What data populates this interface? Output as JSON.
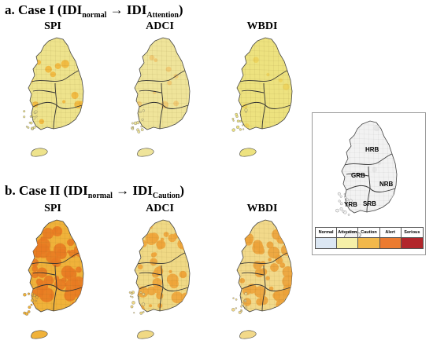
{
  "caseI": {
    "prefix": "a. Case I (IDI",
    "sub1": "normal",
    "arrow": " → IDI",
    "sub2": "Attention",
    "suffix": ")"
  },
  "caseII": {
    "prefix": "b. Case II (IDI",
    "sub1": "normal",
    "arrow": " → IDI",
    "sub2": "Caution",
    "suffix": ")"
  },
  "panels": [
    "SPI",
    "ADCI",
    "WBDI"
  ],
  "maps": {
    "a1": {
      "label": "SPI",
      "base": "#eee38c",
      "hot": "#f1b63b",
      "level": 0.15
    },
    "a2": {
      "label": "ADCI",
      "base": "#efe49a",
      "hot": "#f0c870",
      "level": 0.1
    },
    "a3": {
      "label": "WBDI",
      "base": "#ede27f",
      "hot": "#ecd35c",
      "level": 0.05
    },
    "b1": {
      "label": "SPI",
      "base": "#f0b23a",
      "hot": "#e87a22",
      "level": 0.85
    },
    "b2": {
      "label": "ADCI",
      "base": "#f0d985",
      "hot": "#eea43a",
      "level": 0.55
    },
    "b3": {
      "label": "WBDI",
      "base": "#f2d98a",
      "hot": "#eca23a",
      "level": 0.6
    }
  },
  "basins": [
    "HRB",
    "GRB",
    "NRB",
    "YRB",
    "SRB"
  ],
  "legend": {
    "items": [
      {
        "label": "Normal",
        "color": "#dce7f3"
      },
      {
        "label": "Attention",
        "color": "#f6f0a8"
      },
      {
        "label": "Caution",
        "color": "#f2b84b"
      },
      {
        "label": "Alert",
        "color": "#ec7b30"
      },
      {
        "label": "Serious",
        "color": "#b2262b"
      }
    ]
  }
}
